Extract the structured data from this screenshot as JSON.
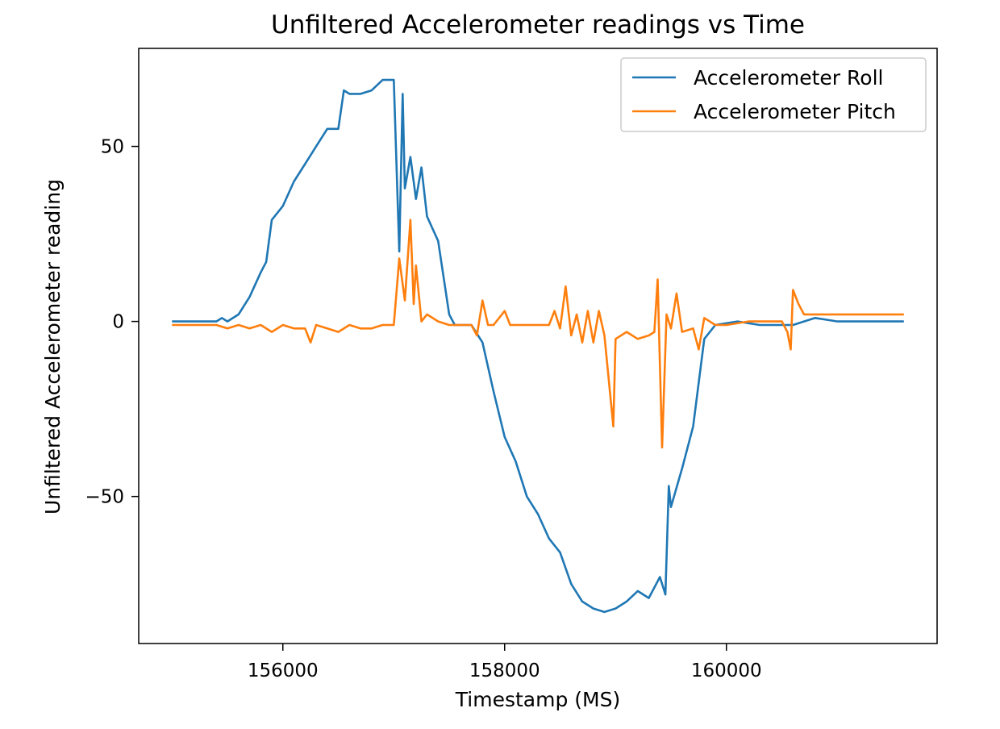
{
  "chart_data": {
    "type": "line",
    "title": "Unfiltered Accelerometer readings vs Time",
    "xlabel": "Timestamp (MS)",
    "ylabel": "Unfiltered Accelerometer reading",
    "xlim": [
      154700,
      161900
    ],
    "ylim": [
      -92,
      78
    ],
    "xticks": [
      156000,
      158000,
      160000
    ],
    "xtick_labels": [
      "156000",
      "158000",
      "160000"
    ],
    "yticks": [
      -50,
      0,
      50
    ],
    "ytick_labels": [
      "−50",
      "0",
      "50"
    ],
    "grid": false,
    "legend_position": "upper right",
    "series": [
      {
        "name": "Accelerometer Roll",
        "color": "#1f77b4",
        "points": [
          [
            155000,
            0
          ],
          [
            155200,
            0
          ],
          [
            155400,
            0
          ],
          [
            155450,
            1
          ],
          [
            155500,
            0
          ],
          [
            155600,
            2
          ],
          [
            155700,
            7
          ],
          [
            155800,
            14
          ],
          [
            155850,
            17
          ],
          [
            155900,
            29
          ],
          [
            156000,
            33
          ],
          [
            156100,
            40
          ],
          [
            156200,
            45
          ],
          [
            156300,
            50
          ],
          [
            156400,
            55
          ],
          [
            156500,
            55
          ],
          [
            156550,
            66
          ],
          [
            156600,
            65
          ],
          [
            156700,
            65
          ],
          [
            156800,
            66
          ],
          [
            156900,
            69
          ],
          [
            157000,
            69
          ],
          [
            157050,
            20
          ],
          [
            157080,
            65
          ],
          [
            157100,
            38
          ],
          [
            157150,
            47
          ],
          [
            157200,
            35
          ],
          [
            157250,
            44
          ],
          [
            157300,
            30
          ],
          [
            157400,
            23
          ],
          [
            157500,
            2
          ],
          [
            157550,
            -1
          ],
          [
            157700,
            -1
          ],
          [
            157800,
            -6
          ],
          [
            157900,
            -20
          ],
          [
            158000,
            -33
          ],
          [
            158100,
            -40
          ],
          [
            158200,
            -50
          ],
          [
            158300,
            -55
          ],
          [
            158400,
            -62
          ],
          [
            158500,
            -66
          ],
          [
            158600,
            -75
          ],
          [
            158700,
            -80
          ],
          [
            158800,
            -82
          ],
          [
            158900,
            -83
          ],
          [
            159000,
            -82
          ],
          [
            159100,
            -80
          ],
          [
            159200,
            -77
          ],
          [
            159300,
            -79
          ],
          [
            159400,
            -73
          ],
          [
            159450,
            -78
          ],
          [
            159480,
            -47
          ],
          [
            159500,
            -53
          ],
          [
            159600,
            -42
          ],
          [
            159700,
            -30
          ],
          [
            159800,
            -5
          ],
          [
            159900,
            -1
          ],
          [
            160100,
            0
          ],
          [
            160300,
            -1
          ],
          [
            160500,
            -1
          ],
          [
            160600,
            -1
          ],
          [
            160700,
            0
          ],
          [
            160800,
            1
          ],
          [
            161000,
            0
          ],
          [
            161200,
            0
          ],
          [
            161400,
            0
          ],
          [
            161600,
            0
          ]
        ]
      },
      {
        "name": "Accelerometer Pitch",
        "color": "#ff7f0e",
        "points": [
          [
            155000,
            -1
          ],
          [
            155200,
            -1
          ],
          [
            155400,
            -1
          ],
          [
            155500,
            -2
          ],
          [
            155600,
            -1
          ],
          [
            155700,
            -2
          ],
          [
            155800,
            -1
          ],
          [
            155900,
            -3
          ],
          [
            156000,
            -1
          ],
          [
            156100,
            -2
          ],
          [
            156200,
            -2
          ],
          [
            156250,
            -6
          ],
          [
            156300,
            -1
          ],
          [
            156400,
            -2
          ],
          [
            156500,
            -3
          ],
          [
            156600,
            -1
          ],
          [
            156700,
            -2
          ],
          [
            156800,
            -2
          ],
          [
            156900,
            -1
          ],
          [
            157000,
            -1
          ],
          [
            157050,
            18
          ],
          [
            157100,
            6
          ],
          [
            157150,
            29
          ],
          [
            157180,
            5
          ],
          [
            157200,
            16
          ],
          [
            157250,
            0
          ],
          [
            157300,
            2
          ],
          [
            157400,
            0
          ],
          [
            157500,
            -1
          ],
          [
            157600,
            -1
          ],
          [
            157700,
            -1
          ],
          [
            157750,
            -4
          ],
          [
            157800,
            6
          ],
          [
            157850,
            -1
          ],
          [
            157900,
            -1
          ],
          [
            158000,
            3
          ],
          [
            158050,
            -1
          ],
          [
            158200,
            -1
          ],
          [
            158400,
            -1
          ],
          [
            158450,
            3
          ],
          [
            158500,
            -2
          ],
          [
            158550,
            10
          ],
          [
            158600,
            -4
          ],
          [
            158650,
            2
          ],
          [
            158700,
            -6
          ],
          [
            158750,
            3
          ],
          [
            158800,
            -6
          ],
          [
            158850,
            3
          ],
          [
            158900,
            -4
          ],
          [
            158980,
            -30
          ],
          [
            159000,
            -5
          ],
          [
            159100,
            -3
          ],
          [
            159200,
            -5
          ],
          [
            159300,
            -4
          ],
          [
            159350,
            -3
          ],
          [
            159380,
            12
          ],
          [
            159420,
            -36
          ],
          [
            159460,
            2
          ],
          [
            159500,
            -2
          ],
          [
            159550,
            8
          ],
          [
            159600,
            -3
          ],
          [
            159700,
            -2
          ],
          [
            159750,
            -8
          ],
          [
            159800,
            1
          ],
          [
            159900,
            -1
          ],
          [
            160000,
            -1
          ],
          [
            160200,
            0
          ],
          [
            160400,
            0
          ],
          [
            160500,
            0
          ],
          [
            160550,
            -3
          ],
          [
            160580,
            -8
          ],
          [
            160600,
            9
          ],
          [
            160650,
            5
          ],
          [
            160700,
            2
          ],
          [
            160900,
            2
          ],
          [
            161100,
            2
          ],
          [
            161300,
            2
          ],
          [
            161500,
            2
          ],
          [
            161600,
            2
          ]
        ]
      }
    ]
  }
}
